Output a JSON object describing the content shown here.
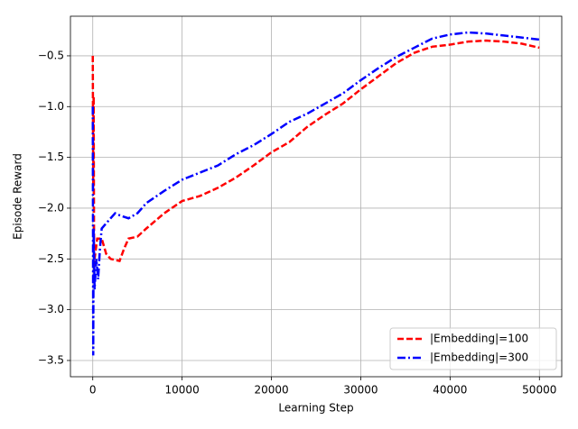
{
  "chart_data": {
    "type": "line",
    "x_label": "Learning Step",
    "y_label": "Episode Reward",
    "xlim": [
      -2500,
      52500
    ],
    "xticks": [
      0,
      10000,
      20000,
      30000,
      40000,
      50000
    ],
    "ylim": [
      -3.66,
      -0.11
    ],
    "yticks": [
      {
        "value": -3.5,
        "label": "−3.5"
      },
      {
        "value": -3.0,
        "label": "−3.0"
      },
      {
        "value": -2.5,
        "label": "−2.5"
      },
      {
        "value": -2.0,
        "label": "−2.0"
      },
      {
        "value": -1.5,
        "label": "−1.5"
      },
      {
        "value": -1.0,
        "label": "−1.0"
      },
      {
        "value": -0.5,
        "label": "−0.5"
      }
    ],
    "grid": true,
    "legend": "lower right",
    "series": [
      {
        "name": "|Embedding|=100",
        "color": "#ff0000",
        "dash": "dashed",
        "x": [
          0,
          50,
          100,
          150,
          200,
          500,
          1000,
          1500,
          2000,
          3000,
          3500,
          4000,
          5000,
          6000,
          8000,
          10000,
          12000,
          14000,
          16000,
          18000,
          20000,
          22000,
          24000,
          26000,
          28000,
          30000,
          32000,
          34000,
          36000,
          38000,
          40000,
          42000,
          44000,
          46000,
          48000,
          50000
        ],
        "values": [
          -0.5,
          -1.8,
          -0.9,
          -2.6,
          -2.5,
          -2.3,
          -2.3,
          -2.45,
          -2.5,
          -2.52,
          -2.4,
          -2.3,
          -2.28,
          -2.2,
          -2.05,
          -1.93,
          -1.88,
          -1.8,
          -1.7,
          -1.58,
          -1.45,
          -1.35,
          -1.2,
          -1.08,
          -0.97,
          -0.83,
          -0.7,
          -0.57,
          -0.47,
          -0.41,
          -0.39,
          -0.36,
          -0.35,
          -0.36,
          -0.38,
          -0.42
        ]
      },
      {
        "name": "|Embedding|=300",
        "color": "#0000ff",
        "dash": "dashdot",
        "x": [
          0,
          50,
          100,
          200,
          400,
          600,
          800,
          1000,
          1500,
          2000,
          2500,
          3000,
          4000,
          5000,
          6000,
          8000,
          10000,
          12000,
          14000,
          16000,
          18000,
          20000,
          22000,
          24000,
          26000,
          28000,
          30000,
          32000,
          34000,
          36000,
          38000,
          40000,
          42000,
          44000,
          46000,
          48000,
          50000
        ],
        "values": [
          -1.0,
          -3.45,
          -2.2,
          -2.8,
          -2.5,
          -2.7,
          -2.4,
          -2.2,
          -2.15,
          -2.1,
          -2.05,
          -2.07,
          -2.1,
          -2.05,
          -1.95,
          -1.83,
          -1.72,
          -1.65,
          -1.58,
          -1.47,
          -1.38,
          -1.27,
          -1.15,
          -1.07,
          -0.97,
          -0.87,
          -0.74,
          -0.62,
          -0.51,
          -0.42,
          -0.33,
          -0.29,
          -0.27,
          -0.28,
          -0.3,
          -0.32,
          -0.34
        ]
      }
    ]
  }
}
